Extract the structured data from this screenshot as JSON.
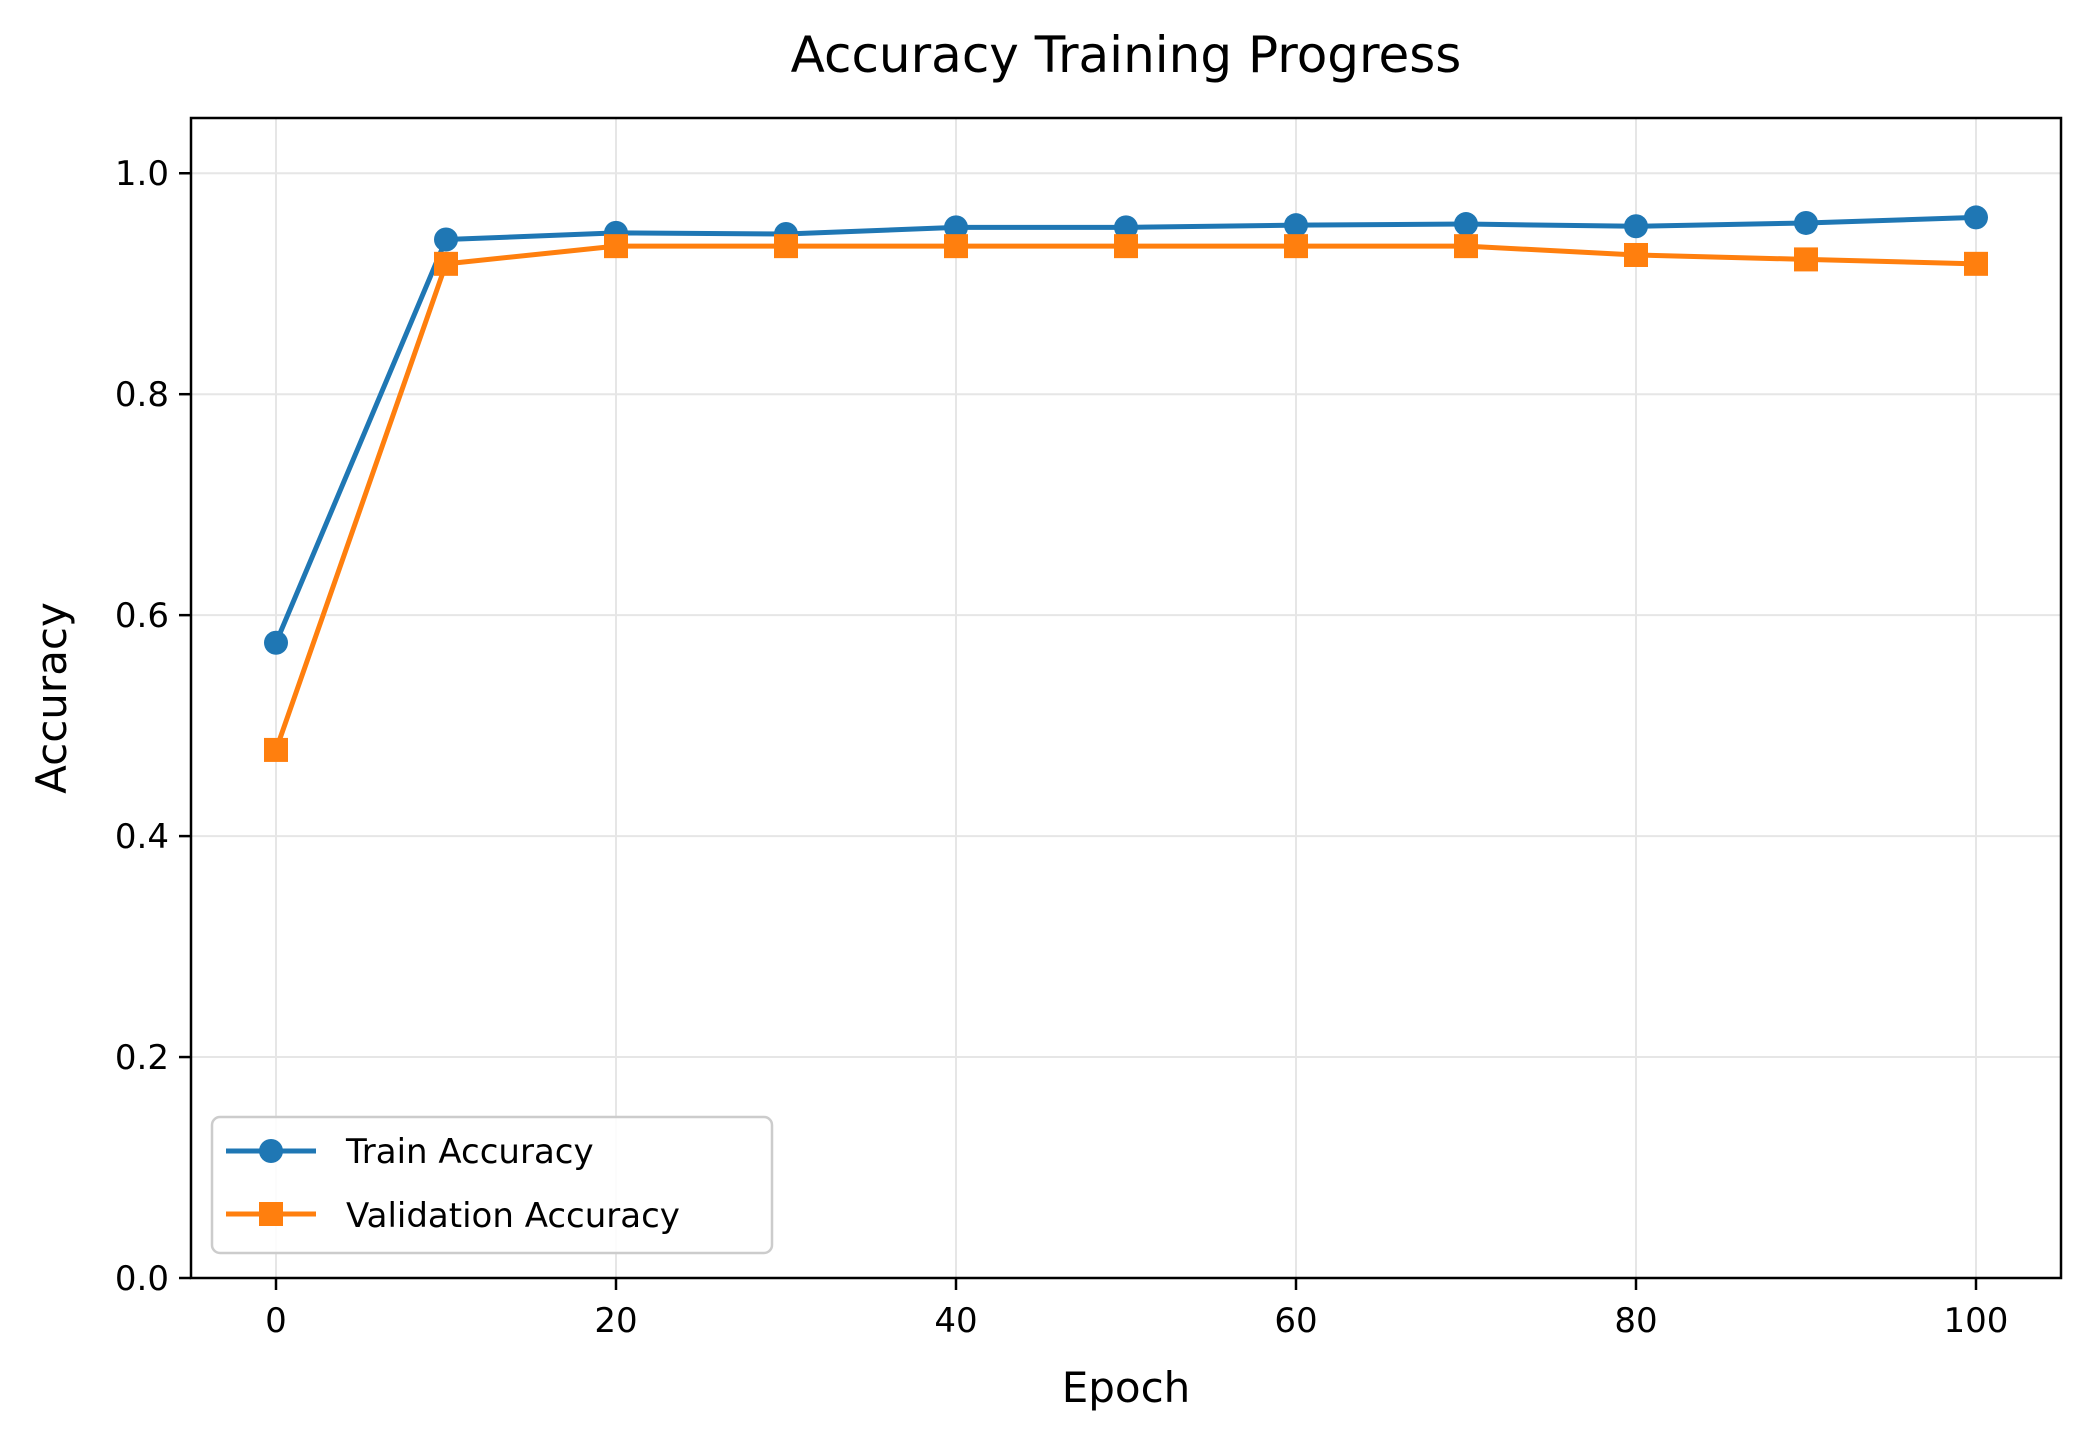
{
  "chart_data": {
    "type": "line",
    "title": "Accuracy Training Progress",
    "xlabel": "Epoch",
    "ylabel": "Accuracy",
    "xlim": [
      -5,
      105
    ],
    "ylim": [
      0.0,
      1.05
    ],
    "xticks": [
      0,
      20,
      40,
      60,
      80,
      100
    ],
    "xtick_labels": [
      "0",
      "20",
      "40",
      "60",
      "80",
      "100"
    ],
    "yticks": [
      0.0,
      0.2,
      0.4,
      0.6,
      0.8,
      1.0
    ],
    "ytick_labels": [
      "0.0",
      "0.2",
      "0.4",
      "0.6",
      "0.8",
      "1.0"
    ],
    "grid": true,
    "legend_position": "lower-left",
    "x": [
      0,
      10,
      20,
      30,
      40,
      50,
      60,
      70,
      80,
      90,
      100
    ],
    "series": [
      {
        "name": "Train Accuracy",
        "color": "#1f77b4",
        "marker": "circle",
        "values": [
          0.575,
          0.94,
          0.946,
          0.945,
          0.951,
          0.951,
          0.953,
          0.954,
          0.952,
          0.955,
          0.96
        ]
      },
      {
        "name": "Validation Accuracy",
        "color": "#ff7f0e",
        "marker": "square",
        "values": [
          0.478,
          0.918,
          0.934,
          0.934,
          0.934,
          0.934,
          0.934,
          0.934,
          0.926,
          0.922,
          0.918
        ]
      }
    ]
  }
}
